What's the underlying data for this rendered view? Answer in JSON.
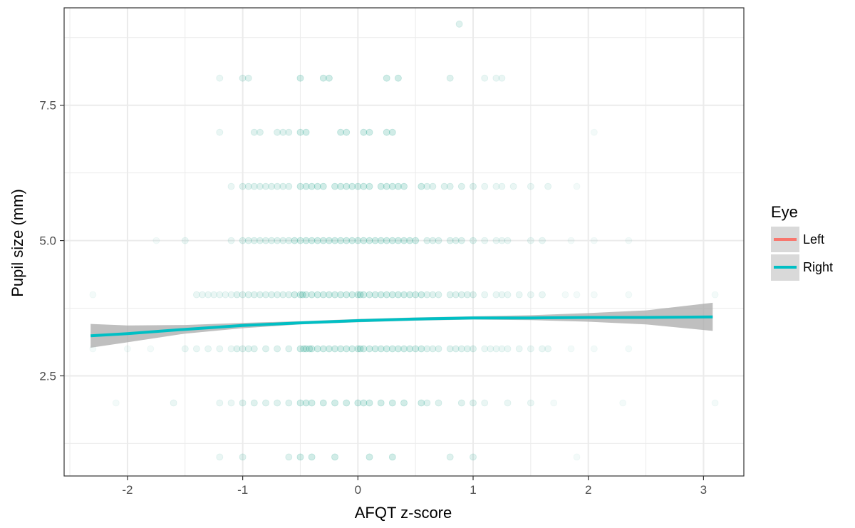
{
  "chart_data": {
    "type": "scatter",
    "xlabel": "AFQT z-score",
    "ylabel": "Pupil size (mm)",
    "xlim": [
      -2.55,
      3.35
    ],
    "ylim": [
      0.65,
      9.3
    ],
    "x_ticks": [
      -2,
      -1,
      0,
      1,
      2,
      3
    ],
    "x_tick_labels": [
      "-2",
      "-1",
      "0",
      "1",
      "2",
      "3"
    ],
    "y_ticks": [
      2.5,
      5.0,
      7.5
    ],
    "y_tick_labels": [
      "2.5",
      "5.0",
      "7.5"
    ],
    "grid": true,
    "legend": {
      "title": "Eye",
      "placement": "right",
      "entries": [
        {
          "label": "Left",
          "color": "#F8766D"
        },
        {
          "label": "Right",
          "color": "#00BFC4"
        }
      ]
    },
    "colors": {
      "points": "#1B9E89",
      "trend": "#00BFC4",
      "ribbon": "#A9A9A9",
      "grid": "#EBEBEB",
      "legend_key_bg": "#D9D9D9"
    },
    "point_rows": [
      {
        "y": 1,
        "x": [
          -1.2,
          -1.0,
          -0.6,
          -0.5,
          -0.4,
          -0.2,
          0.1,
          0.3,
          0.8,
          1.0,
          1.9
        ]
      },
      {
        "y": 2,
        "x": [
          -2.1,
          -1.6,
          -1.2,
          -1.1,
          -1.0,
          -0.9,
          -0.8,
          -0.7,
          -0.6,
          -0.5,
          -0.45,
          -0.4,
          -0.3,
          -0.2,
          -0.1,
          0.0,
          0.05,
          0.1,
          0.2,
          0.3,
          0.4,
          0.55,
          0.6,
          0.7,
          0.9,
          1.0,
          1.1,
          1.3,
          1.5,
          1.7,
          2.3,
          3.1
        ]
      },
      {
        "y": 3,
        "x": [
          -2.3,
          -2.0,
          -1.8,
          -1.5,
          -1.4,
          -1.3,
          -1.2,
          -1.1,
          -1.05,
          -1.0,
          -0.95,
          -0.9,
          -0.8,
          -0.7,
          -0.6,
          -0.5,
          -0.47,
          -0.45,
          -0.42,
          -0.4,
          -0.35,
          -0.3,
          -0.25,
          -0.2,
          -0.15,
          -0.1,
          -0.05,
          0.0,
          0.02,
          0.05,
          0.1,
          0.15,
          0.2,
          0.25,
          0.3,
          0.35,
          0.4,
          0.45,
          0.5,
          0.55,
          0.6,
          0.65,
          0.7,
          0.8,
          0.85,
          0.9,
          0.95,
          1.0,
          1.1,
          1.15,
          1.2,
          1.25,
          1.3,
          1.4,
          1.5,
          1.6,
          1.65,
          1.85,
          2.05,
          2.35
        ]
      },
      {
        "y": 4,
        "x": [
          -2.3,
          -1.4,
          -1.35,
          -1.3,
          -1.25,
          -1.2,
          -1.15,
          -1.1,
          -1.05,
          -1.0,
          -0.95,
          -0.9,
          -0.85,
          -0.8,
          -0.75,
          -0.7,
          -0.65,
          -0.6,
          -0.55,
          -0.5,
          -0.48,
          -0.45,
          -0.4,
          -0.35,
          -0.3,
          -0.25,
          -0.2,
          -0.15,
          -0.1,
          -0.05,
          0.0,
          0.02,
          0.05,
          0.1,
          0.15,
          0.2,
          0.25,
          0.3,
          0.35,
          0.4,
          0.45,
          0.5,
          0.55,
          0.6,
          0.65,
          0.7,
          0.8,
          0.85,
          0.9,
          0.95,
          1.0,
          1.1,
          1.2,
          1.25,
          1.3,
          1.4,
          1.5,
          1.6,
          1.8,
          1.9,
          2.05,
          2.35,
          3.1
        ]
      },
      {
        "y": 5,
        "x": [
          -1.75,
          -1.5,
          -1.1,
          -1.0,
          -0.95,
          -0.9,
          -0.85,
          -0.8,
          -0.75,
          -0.7,
          -0.65,
          -0.6,
          -0.55,
          -0.5,
          -0.45,
          -0.4,
          -0.35,
          -0.3,
          -0.25,
          -0.2,
          -0.15,
          -0.1,
          -0.05,
          0.0,
          0.05,
          0.1,
          0.15,
          0.2,
          0.25,
          0.3,
          0.35,
          0.4,
          0.45,
          0.5,
          0.6,
          0.65,
          0.7,
          0.8,
          0.85,
          0.9,
          1.0,
          1.1,
          1.2,
          1.25,
          1.3,
          1.5,
          1.6,
          1.85,
          2.05,
          2.35
        ]
      },
      {
        "y": 6,
        "x": [
          -1.1,
          -1.0,
          -0.95,
          -0.9,
          -0.85,
          -0.8,
          -0.75,
          -0.7,
          -0.65,
          -0.6,
          -0.5,
          -0.45,
          -0.4,
          -0.35,
          -0.3,
          -0.2,
          -0.15,
          -0.1,
          -0.05,
          0.0,
          0.05,
          0.1,
          0.2,
          0.25,
          0.3,
          0.35,
          0.4,
          0.55,
          0.6,
          0.65,
          0.75,
          0.8,
          0.9,
          1.0,
          1.1,
          1.2,
          1.25,
          1.35,
          1.5,
          1.65,
          1.9
        ]
      },
      {
        "y": 7,
        "x": [
          -1.2,
          -0.9,
          -0.85,
          -0.7,
          -0.65,
          -0.6,
          -0.5,
          -0.45,
          -0.15,
          -0.1,
          0.05,
          0.1,
          0.25,
          0.3,
          2.05
        ]
      },
      {
        "y": 8,
        "x": [
          -1.2,
          -1.0,
          -0.95,
          -0.5,
          -0.3,
          -0.25,
          0.25,
          0.35,
          0.8,
          1.1,
          1.2,
          1.25
        ]
      },
      {
        "y": 9,
        "x": [
          0.88
        ]
      }
    ],
    "trend": {
      "x": [
        -2.32,
        -2.0,
        -1.5,
        -1.0,
        -0.5,
        0.0,
        0.5,
        1.0,
        1.5,
        2.0,
        2.5,
        3.08
      ],
      "y": [
        3.24,
        3.28,
        3.36,
        3.43,
        3.48,
        3.52,
        3.55,
        3.57,
        3.57,
        3.58,
        3.58,
        3.59
      ],
      "lower": [
        3.02,
        3.12,
        3.28,
        3.38,
        3.45,
        3.49,
        3.52,
        3.54,
        3.53,
        3.5,
        3.45,
        3.33
      ],
      "upper": [
        3.46,
        3.43,
        3.44,
        3.48,
        3.51,
        3.55,
        3.58,
        3.6,
        3.62,
        3.66,
        3.71,
        3.85
      ]
    }
  }
}
